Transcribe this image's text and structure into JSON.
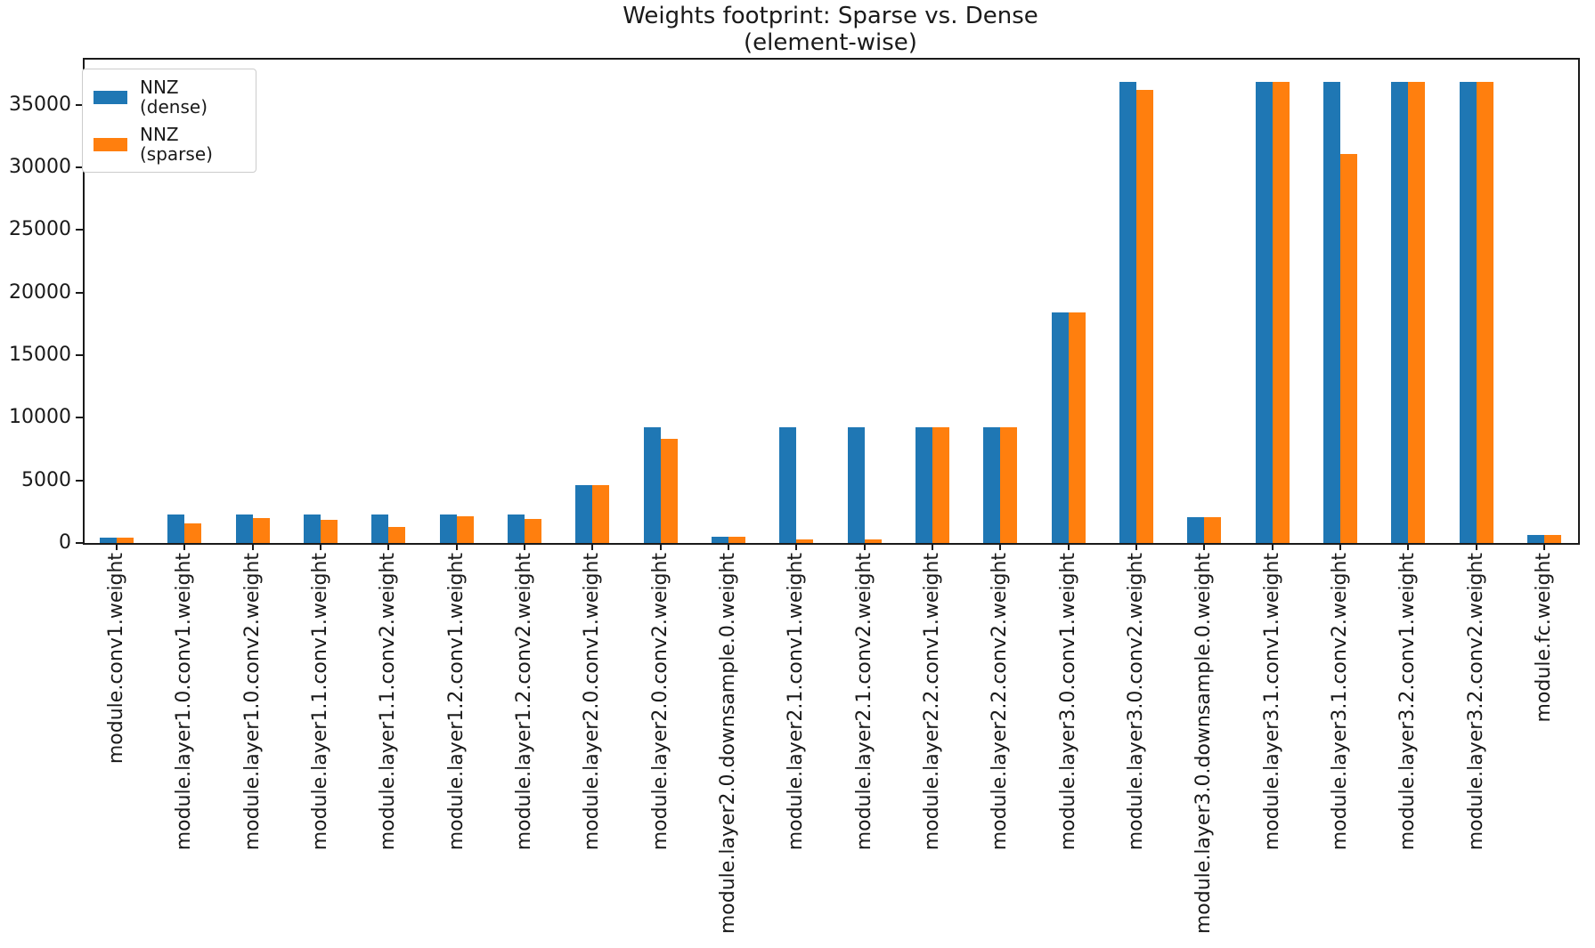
{
  "title": {
    "line1": "Weights footprint: Sparse vs. Dense",
    "line2": "(element-wise)"
  },
  "colors": {
    "dense": "#1f77b4",
    "sparse": "#ff7f0e",
    "axis": "#1a1a1a",
    "background": "#ffffff"
  },
  "chart_data": {
    "type": "bar",
    "title": "Weights footprint: Sparse vs. Dense\n(element-wise)",
    "xlabel": "",
    "ylabel": "",
    "grid": false,
    "legend_position": "upper left",
    "ylim": [
      0,
      38760
    ],
    "yticks": [
      0,
      5000,
      10000,
      15000,
      20000,
      25000,
      30000,
      35000
    ],
    "categories": [
      "module.conv1.weight",
      "module.layer1.0.conv1.weight",
      "module.layer1.0.conv2.weight",
      "module.layer1.1.conv1.weight",
      "module.layer1.1.conv2.weight",
      "module.layer1.2.conv1.weight",
      "module.layer1.2.conv2.weight",
      "module.layer2.0.conv1.weight",
      "module.layer2.0.conv2.weight",
      "module.layer2.0.downsample.0.weight",
      "module.layer2.1.conv1.weight",
      "module.layer2.1.conv2.weight",
      "module.layer2.2.conv1.weight",
      "module.layer2.2.conv2.weight",
      "module.layer3.0.conv1.weight",
      "module.layer3.0.conv2.weight",
      "module.layer3.0.downsample.0.weight",
      "module.layer3.1.conv1.weight",
      "module.layer3.1.conv2.weight",
      "module.layer3.2.conv1.weight",
      "module.layer3.2.conv2.weight",
      "module.fc.weight"
    ],
    "series": [
      {
        "name": "NNZ (dense)",
        "color": "#1f77b4",
        "values": [
          432,
          2304,
          2304,
          2304,
          2304,
          2304,
          2304,
          4608,
          9216,
          512,
          9216,
          9216,
          9216,
          9216,
          18432,
          36864,
          2048,
          36864,
          36864,
          36864,
          36864,
          640
        ]
      },
      {
        "name": "NNZ (sparse)",
        "color": "#ff7f0e",
        "values": [
          432,
          1570,
          2020,
          1850,
          1260,
          2160,
          1900,
          4608,
          8290,
          512,
          280,
          280,
          9216,
          9216,
          18432,
          36200,
          2048,
          36864,
          31100,
          36864,
          36864,
          640
        ]
      }
    ]
  }
}
